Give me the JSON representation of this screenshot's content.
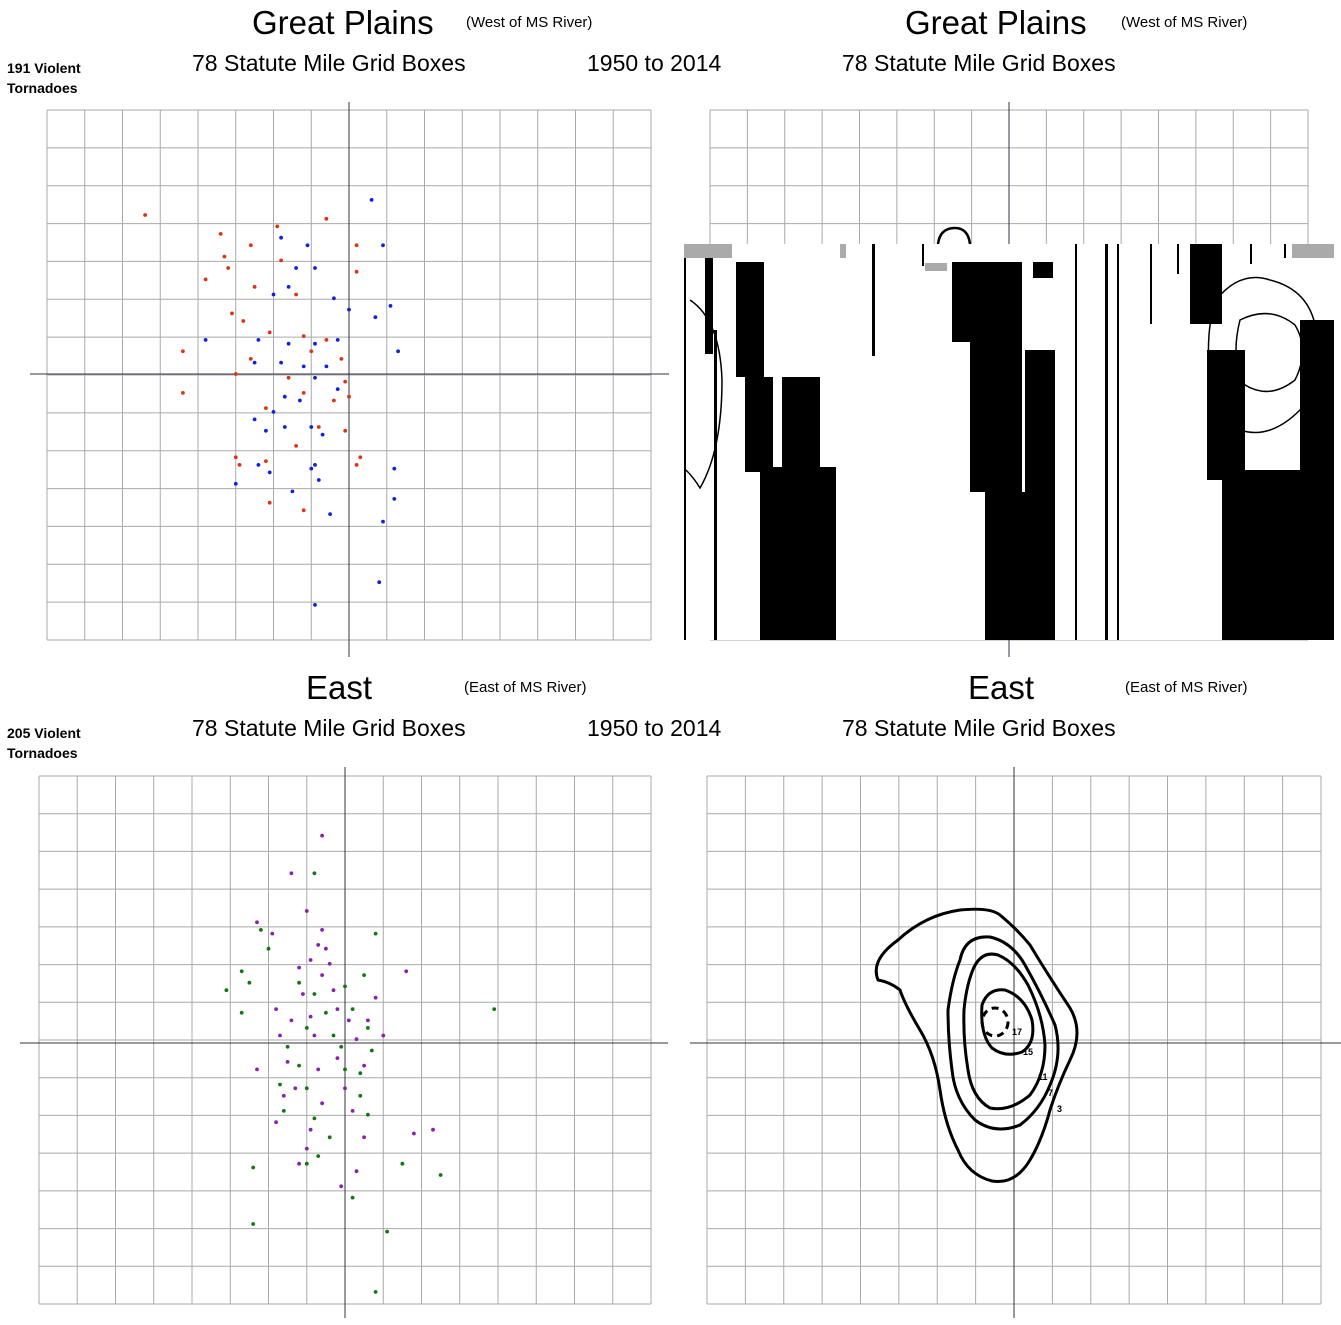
{
  "top_left": {
    "title": "Great Plains",
    "region_note": "(West of MS River)",
    "subtitle": "78 Statute Mile Grid Boxes",
    "count_line1": "191 Violent",
    "count_line2": "Tornadoes"
  },
  "top_center": {
    "period": "1950 to 2014"
  },
  "top_right": {
    "title": "Great Plains",
    "region_note": "(West of MS River)",
    "subtitle": "78 Statute Mile Grid Boxes"
  },
  "bottom_left": {
    "title": "East",
    "region_note": "(East of MS River)",
    "subtitle": "78 Statute Mile Grid Boxes",
    "count_line1": "205 Violent",
    "count_line2": "Tornadoes"
  },
  "bottom_center": {
    "period": "1950 to 2014"
  },
  "bottom_right": {
    "title": "East",
    "region_note": "(East of MS River)",
    "subtitle": "78 Statute Mile Grid Boxes"
  },
  "colors": {
    "grid": "#aaaaaa",
    "axis": "#333344",
    "series_red": "#dd3311",
    "series_blue": "#1122dd",
    "series_purple": "#8822aa",
    "series_green": "#117711"
  },
  "chart_data": [
    {
      "id": "gp-scatter",
      "type": "scatter",
      "grid": true,
      "grid_columns": 16,
      "grid_rows": 14,
      "xlim": [
        -8,
        8
      ],
      "ylim": [
        -7,
        7
      ],
      "series": [
        {
          "color": "#dd3311",
          "points": [
            [
              -5.4,
              4.2
            ],
            [
              -3.4,
              3.7
            ],
            [
              -3.3,
              3.1
            ],
            [
              -3.2,
              2.8
            ],
            [
              -3.8,
              2.5
            ],
            [
              -2.6,
              3.4
            ],
            [
              -1.9,
              3.9
            ],
            [
              -1.8,
              3.0
            ],
            [
              -0.6,
              4.1
            ],
            [
              0.2,
              3.4
            ],
            [
              0.2,
              2.7
            ],
            [
              -2.5,
              2.3
            ],
            [
              -1.4,
              2.1
            ],
            [
              -3.1,
              1.6
            ],
            [
              -2.8,
              1.4
            ],
            [
              -2.1,
              1.1
            ],
            [
              -1.2,
              1.0
            ],
            [
              -0.6,
              0.9
            ],
            [
              -4.4,
              0.6
            ],
            [
              -2.6,
              0.4
            ],
            [
              -1.0,
              0.6
            ],
            [
              -0.2,
              0.4
            ],
            [
              -3.0,
              0.0
            ],
            [
              -1.6,
              -0.1
            ],
            [
              -0.1,
              -0.2
            ],
            [
              -4.4,
              -0.5
            ],
            [
              -1.2,
              -0.5
            ],
            [
              -0.4,
              -0.7
            ],
            [
              0.0,
              -0.6
            ],
            [
              -2.2,
              -0.9
            ],
            [
              -0.8,
              -1.4
            ],
            [
              -0.1,
              -1.5
            ],
            [
              -2.9,
              -2.4
            ],
            [
              -3.0,
              -2.2
            ],
            [
              -2.2,
              -2.3
            ],
            [
              0.2,
              -2.4
            ],
            [
              -2.1,
              -3.4
            ],
            [
              -1.2,
              -3.6
            ],
            [
              0.3,
              -2.2
            ],
            [
              -1.4,
              -1.9
            ]
          ]
        },
        {
          "color": "#1122dd",
          "points": [
            [
              0.6,
              4.6
            ],
            [
              -1.8,
              3.6
            ],
            [
              -1.1,
              3.4
            ],
            [
              0.9,
              3.4
            ],
            [
              -1.4,
              2.8
            ],
            [
              -0.9,
              2.8
            ],
            [
              -1.6,
              2.3
            ],
            [
              -2.0,
              2.1
            ],
            [
              -0.4,
              2.0
            ],
            [
              0.0,
              1.7
            ],
            [
              1.1,
              1.8
            ],
            [
              0.7,
              1.5
            ],
            [
              -3.8,
              0.9
            ],
            [
              -2.4,
              0.9
            ],
            [
              -1.6,
              0.8
            ],
            [
              -0.9,
              0.8
            ],
            [
              -0.3,
              0.9
            ],
            [
              1.3,
              0.6
            ],
            [
              -2.5,
              0.3
            ],
            [
              -1.8,
              0.3
            ],
            [
              -1.2,
              0.2
            ],
            [
              -0.6,
              0.2
            ],
            [
              -0.9,
              -0.1
            ],
            [
              -1.7,
              -0.6
            ],
            [
              -2.0,
              -1.0
            ],
            [
              -2.5,
              -1.2
            ],
            [
              -2.2,
              -1.5
            ],
            [
              -1.7,
              -1.4
            ],
            [
              -1.0,
              -1.4
            ],
            [
              -0.7,
              -1.6
            ],
            [
              -2.4,
              -2.4
            ],
            [
              -2.1,
              -2.6
            ],
            [
              -0.9,
              -2.4
            ],
            [
              -0.8,
              -2.8
            ],
            [
              -1.5,
              -3.1
            ],
            [
              -0.5,
              -3.7
            ],
            [
              -1.0,
              -2.5
            ],
            [
              -3.0,
              -2.9
            ],
            [
              1.2,
              -2.5
            ],
            [
              1.2,
              -3.3
            ],
            [
              0.9,
              -3.9
            ],
            [
              0.8,
              -5.5
            ],
            [
              -0.9,
              -6.1
            ],
            [
              -1.3,
              -0.7
            ],
            [
              -0.3,
              -0.4
            ]
          ]
        }
      ]
    },
    {
      "id": "gp-contour",
      "type": "contour",
      "grid": true,
      "grid_columns": 16,
      "grid_rows": 14,
      "xlim": [
        -8,
        8
      ],
      "ylim": [
        -7,
        7
      ],
      "contour_labels": []
    },
    {
      "id": "east-scatter",
      "type": "scatter",
      "grid": true,
      "grid_columns": 16,
      "grid_rows": 14,
      "xlim": [
        -8,
        8
      ],
      "ylim": [
        -7,
        7
      ],
      "series": [
        {
          "color": "#8822aa",
          "points": [
            [
              -0.6,
              5.5
            ],
            [
              -1.4,
              4.5
            ],
            [
              -1.0,
              3.5
            ],
            [
              -2.3,
              3.2
            ],
            [
              -1.9,
              2.9
            ],
            [
              -0.6,
              3.0
            ],
            [
              -0.5,
              2.5
            ],
            [
              -0.9,
              2.2
            ],
            [
              -0.4,
              2.1
            ],
            [
              -1.2,
              2.0
            ],
            [
              -0.6,
              1.8
            ],
            [
              1.6,
              1.9
            ],
            [
              -1.1,
              1.3
            ],
            [
              -0.3,
              1.4
            ],
            [
              0.8,
              1.2
            ],
            [
              -1.8,
              0.9
            ],
            [
              -1.4,
              0.6
            ],
            [
              -0.9,
              0.7
            ],
            [
              -0.2,
              0.9
            ],
            [
              0.6,
              0.6
            ],
            [
              -1.7,
              0.2
            ],
            [
              -0.8,
              0.2
            ],
            [
              0.3,
              0.1
            ],
            [
              -1.5,
              -0.5
            ],
            [
              -0.7,
              -0.7
            ],
            [
              0.5,
              -0.6
            ],
            [
              -1.6,
              -1.4
            ],
            [
              -0.6,
              -1.6
            ],
            [
              0.2,
              -1.8
            ],
            [
              -1.8,
              -2.1
            ],
            [
              -0.9,
              -2.3
            ],
            [
              0.5,
              -2.5
            ],
            [
              -1.2,
              -3.2
            ],
            [
              0.3,
              -3.4
            ],
            [
              -0.1,
              -3.8
            ],
            [
              1.8,
              -2.4
            ],
            [
              2.3,
              -2.3
            ],
            [
              -2.3,
              -0.7
            ],
            [
              -1.3,
              -1.2
            ],
            [
              0.0,
              -1.2
            ],
            [
              -0.7,
              2.6
            ],
            [
              0.1,
              0.6
            ],
            [
              -0.2,
              -0.4
            ],
            [
              -1.0,
              -2.8
            ],
            [
              1.0,
              0.2
            ]
          ]
        },
        {
          "color": "#117711",
          "points": [
            [
              -0.8,
              4.5
            ],
            [
              -2.2,
              3.0
            ],
            [
              -2.0,
              2.5
            ],
            [
              0.8,
              2.9
            ],
            [
              -2.7,
              1.9
            ],
            [
              -2.5,
              1.6
            ],
            [
              -3.1,
              1.4
            ],
            [
              -1.2,
              1.6
            ],
            [
              0.5,
              1.8
            ],
            [
              -0.8,
              1.3
            ],
            [
              0.0,
              1.5
            ],
            [
              -2.7,
              0.8
            ],
            [
              -0.5,
              0.8
            ],
            [
              0.2,
              0.9
            ],
            [
              3.9,
              0.9
            ],
            [
              -1.0,
              0.4
            ],
            [
              0.6,
              0.4
            ],
            [
              -1.5,
              -0.1
            ],
            [
              -0.1,
              -0.1
            ],
            [
              0.7,
              -0.2
            ],
            [
              -1.2,
              -0.6
            ],
            [
              0.0,
              -0.7
            ],
            [
              -1.7,
              -1.1
            ],
            [
              -1.0,
              -1.2
            ],
            [
              0.4,
              -1.4
            ],
            [
              -1.6,
              -1.8
            ],
            [
              -0.8,
              -2.0
            ],
            [
              0.6,
              -1.9
            ],
            [
              -1.0,
              -3.2
            ],
            [
              -0.7,
              -3.0
            ],
            [
              1.5,
              -3.2
            ],
            [
              2.5,
              -3.5
            ],
            [
              -2.4,
              -3.3
            ],
            [
              -2.4,
              -4.8
            ],
            [
              1.1,
              -5.0
            ],
            [
              0.8,
              -6.6
            ],
            [
              0.2,
              -4.1
            ],
            [
              -0.4,
              -2.5
            ],
            [
              -0.3,
              0.2
            ],
            [
              0.4,
              -0.8
            ]
          ]
        }
      ]
    },
    {
      "id": "east-contour",
      "type": "contour",
      "grid": true,
      "grid_columns": 16,
      "grid_rows": 14,
      "xlim": [
        -8,
        8
      ],
      "ylim": [
        -7,
        7
      ],
      "contour_labels": [
        "17",
        "15",
        "11",
        "7",
        "3"
      ]
    }
  ]
}
